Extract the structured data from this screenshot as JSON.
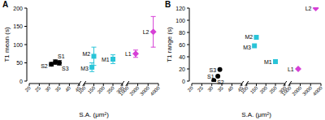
{
  "chart_data": [
    {
      "type": "scatter",
      "label": "A",
      "x_label": "S.A. (μm²)",
      "y_label": "T1 mean (s)",
      "xsegments": [
        {
          "xlim": [
            20,
            45
          ],
          "xticks": [
            20,
            25,
            30,
            35,
            40,
            45
          ]
        },
        {
          "xlim": [
            100,
            300
          ],
          "xticks": [
            100,
            150,
            200,
            250,
            300
          ]
        },
        {
          "xlim": [
            1000,
            4000
          ],
          "xticks": [
            1000,
            2000,
            3000,
            4000
          ]
        }
      ],
      "ylim": [
        0,
        200
      ],
      "yticks": [
        0,
        50,
        100,
        150,
        200
      ],
      "series": [
        {
          "name": "S1",
          "color": "#000000",
          "marker": "circle",
          "x": [
            33
          ],
          "values": [
            52
          ],
          "error": [
            6
          ]
        },
        {
          "name": "S2",
          "color": "#000000",
          "marker": "circle",
          "x": [
            31
          ],
          "values": [
            46
          ],
          "error": [
            5
          ]
        },
        {
          "name": "S3",
          "color": "#000000",
          "marker": "circle",
          "x": [
            35
          ],
          "values": [
            50
          ],
          "error": [
            6
          ]
        },
        {
          "name": "M1",
          "color": "#29c4d8",
          "marker": "square",
          "x": [
            250
          ],
          "values": [
            60
          ],
          "error": [
            12
          ]
        },
        {
          "name": "M2",
          "color": "#29c4d8",
          "marker": "square",
          "x": [
            150
          ],
          "values": [
            68
          ],
          "error": [
            25
          ]
        },
        {
          "name": "M3",
          "color": "#29c4d8",
          "marker": "square",
          "x": [
            140
          ],
          "values": [
            38
          ],
          "error": [
            12
          ]
        },
        {
          "name": "L1",
          "color": "#d63fd6",
          "marker": "diamond",
          "x": [
            1800
          ],
          "values": [
            75
          ],
          "error": [
            10
          ]
        },
        {
          "name": "L2",
          "color": "#d63fd6",
          "marker": "diamond",
          "x": [
            3500
          ],
          "values": [
            135
          ],
          "error": [
            42
          ]
        }
      ]
    },
    {
      "type": "scatter",
      "label": "B",
      "x_label": "S.A. (μm²)",
      "y_label": "T1 range (s)",
      "xsegments": [
        {
          "xlim": [
            20,
            45
          ],
          "xticks": [
            20,
            25,
            30,
            35,
            40,
            45
          ]
        },
        {
          "xlim": [
            100,
            300
          ],
          "xticks": [
            100,
            150,
            200,
            250,
            300
          ]
        },
        {
          "xlim": [
            1000,
            4000
          ],
          "xticks": [
            1000,
            2000,
            3000,
            4000
          ]
        }
      ],
      "ylim": [
        0,
        120
      ],
      "yticks": [
        0,
        20,
        40,
        60,
        80,
        100,
        120
      ],
      "series": [
        {
          "name": "S1",
          "color": "#000000",
          "marker": "circle",
          "x": [
            33
          ],
          "values": [
            8
          ]
        },
        {
          "name": "S2",
          "color": "#000000",
          "marker": "circle",
          "x": [
            31
          ],
          "values": [
            1
          ]
        },
        {
          "name": "S3",
          "color": "#000000",
          "marker": "circle",
          "x": [
            34
          ],
          "values": [
            19
          ]
        },
        {
          "name": "M1",
          "color": "#29c4d8",
          "marker": "square",
          "x": [
            250
          ],
          "values": [
            32
          ]
        },
        {
          "name": "M2",
          "color": "#29c4d8",
          "marker": "square",
          "x": [
            150
          ],
          "values": [
            72
          ]
        },
        {
          "name": "M3",
          "color": "#29c4d8",
          "marker": "square",
          "x": [
            140
          ],
          "values": [
            58
          ]
        },
        {
          "name": "L1",
          "color": "#d63fd6",
          "marker": "diamond",
          "x": [
            1800
          ],
          "values": [
            20
          ]
        },
        {
          "name": "L2",
          "color": "#d63fd6",
          "marker": "diamond",
          "x": [
            3500
          ],
          "values": [
            120
          ]
        }
      ]
    }
  ]
}
